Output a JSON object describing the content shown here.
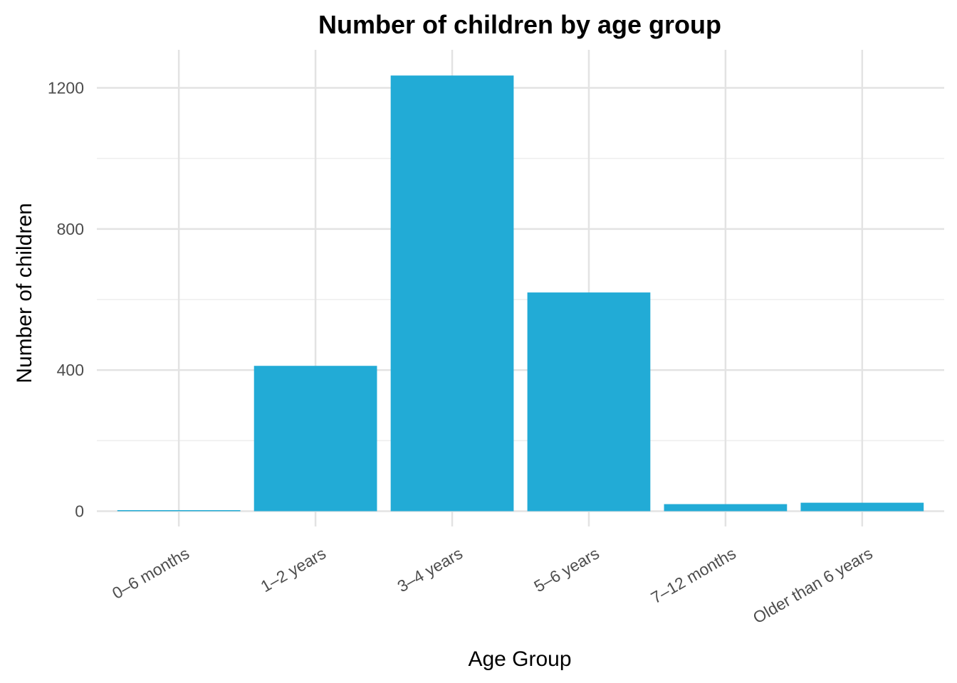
{
  "chart_data": {
    "type": "bar",
    "title": "Number of children by age group",
    "xlabel": "Age Group",
    "ylabel": "Number of children",
    "categories": [
      "0–6 months",
      "1–2 years",
      "3–4 years",
      "5–6 years",
      "7–12 months",
      "Older than 6 years"
    ],
    "values": [
      3,
      412,
      1235,
      620,
      20,
      24
    ],
    "ylim": [
      0,
      1300
    ],
    "yticks": [
      0,
      400,
      800,
      1200
    ],
    "grid": true,
    "legend": "none",
    "bar_color": "#22abd6"
  }
}
